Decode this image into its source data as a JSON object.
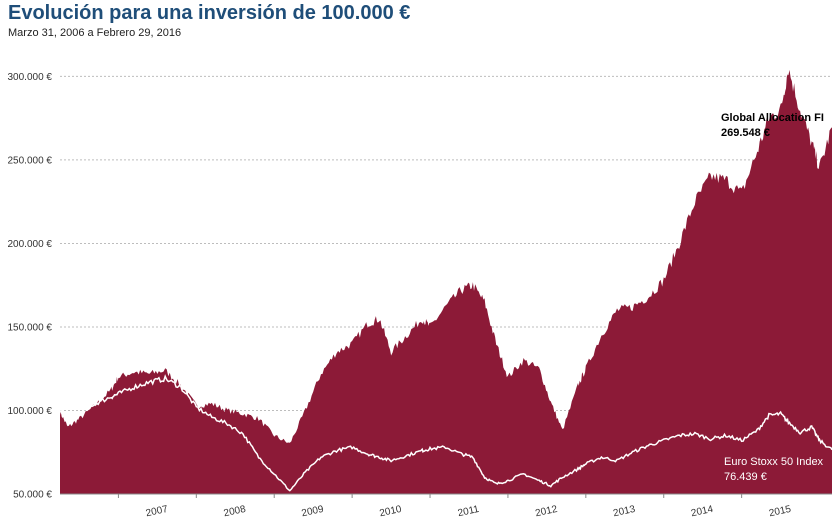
{
  "header": {
    "title": "Evolución para una inversión de 100.000 €",
    "subtitle": "Marzo 31, 2006 a Febrero 29, 2016"
  },
  "colors": {
    "fund": "#8c1a37",
    "index": "#ffffff",
    "grid": "#bdbdbd",
    "title": "#1f4e79"
  },
  "chart_data": {
    "type": "area",
    "title": "Evolución para una inversión de 100.000 €",
    "subtitle": "Marzo 31, 2006 a Febrero 29, 2016",
    "ylim": [
      50000,
      320000
    ],
    "yticks": [
      50000,
      100000,
      150000,
      200000,
      250000,
      300000
    ],
    "ytick_labels": [
      "50.000 €",
      "100.000 €",
      "150.000 €",
      "200.000 €",
      "250.000 €",
      "300.000 €"
    ],
    "xticks": [
      "2007",
      "2008",
      "2009",
      "2010",
      "2011",
      "2012",
      "2013",
      "2014",
      "2015"
    ],
    "grid": "horizontal dashed",
    "x": [
      2006.25,
      2006.35,
      2006.5,
      2006.7,
      2006.9,
      2007.0,
      2007.2,
      2007.4,
      2007.6,
      2007.8,
      2008.0,
      2008.2,
      2008.4,
      2008.6,
      2008.8,
      2009.0,
      2009.2,
      2009.4,
      2009.6,
      2009.8,
      2010.0,
      2010.2,
      2010.35,
      2010.5,
      2010.7,
      2010.9,
      2011.0,
      2011.2,
      2011.4,
      2011.55,
      2011.7,
      2011.85,
      2012.0,
      2012.2,
      2012.4,
      2012.55,
      2012.7,
      2012.9,
      2013.0,
      2013.2,
      2013.4,
      2013.6,
      2013.8,
      2014.0,
      2014.2,
      2014.4,
      2014.6,
      2014.8,
      2015.0,
      2015.2,
      2015.35,
      2015.5,
      2015.6,
      2015.75,
      2015.9,
      2016.0,
      2016.16
    ],
    "series": [
      {
        "name": "Global Allocation FI",
        "end_label": "269.548 €",
        "values": [
          99000,
          90000,
          95000,
          103000,
          112000,
          120000,
          123000,
          122000,
          124000,
          115000,
          103000,
          104000,
          100000,
          98000,
          95000,
          85000,
          80000,
          100000,
          122000,
          135000,
          140000,
          152000,
          155000,
          135000,
          145000,
          155000,
          150000,
          162000,
          172000,
          175000,
          165000,
          140000,
          120000,
          130000,
          125000,
          105000,
          88000,
          115000,
          125000,
          145000,
          160000,
          162000,
          168000,
          178000,
          200000,
          225000,
          240000,
          238000,
          230000,
          255000,
          275000,
          280000,
          305000,
          280000,
          260000,
          245000,
          269548
        ]
      },
      {
        "name": "Euro Stoxx 50 Index",
        "end_label": "76.439 €",
        "values": [
          100000,
          96000,
          100000,
          104000,
          108000,
          110000,
          114000,
          117000,
          119000,
          114000,
          102000,
          96000,
          92000,
          86000,
          72000,
          62000,
          52000,
          63000,
          72000,
          76000,
          78000,
          74000,
          72000,
          70000,
          73000,
          76000,
          77000,
          78000,
          74000,
          72000,
          60000,
          56000,
          58000,
          62000,
          58000,
          55000,
          60000,
          65000,
          68000,
          72000,
          70000,
          75000,
          79000,
          82000,
          85000,
          86000,
          83000,
          85000,
          82000,
          88000,
          97000,
          98000,
          93000,
          87000,
          90000,
          82000,
          76439
        ]
      }
    ]
  }
}
